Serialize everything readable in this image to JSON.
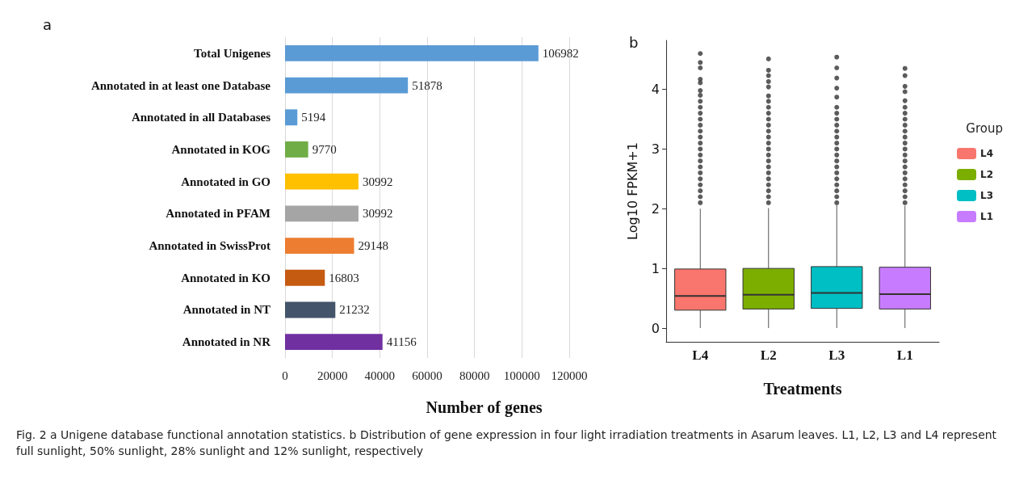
{
  "chart_data": [
    {
      "type": "bar",
      "title": "a",
      "orientation": "horizontal",
      "categories": [
        "Total Unigenes",
        "Annotated in at least one Database",
        "Annotated in all Databases",
        "Annotated in KOG",
        "Annotated in GO",
        "Annotated in PFAM",
        "Annotated in SwissProt",
        "Annotated in KO",
        "Annotated in NT",
        "Annotated in NR"
      ],
      "values": [
        106982,
        51878,
        5194,
        9770,
        30992,
        30992,
        29148,
        16803,
        21232,
        41156
      ],
      "colors": [
        "#5b9bd5",
        "#5b9bd5",
        "#5b9bd5",
        "#70ad47",
        "#ffc000",
        "#a5a5a5",
        "#ed7d31",
        "#c55a11",
        "#44546a",
        "#7030a0"
      ],
      "xlim": [
        0,
        120000
      ],
      "xticks": [
        0,
        20000,
        40000,
        60000,
        80000,
        100000,
        120000
      ],
      "grid": "x",
      "data_labels": true,
      "legend": false,
      "xlabel": "Number of genes",
      "annotations": [
        "Fig. 2 a Unigene database functional annotation statistics. b Distribution of gene expression in four light irradiation treatments in Asarum leaves. L1, L2, L3 and L4 represent full sunlight, 50% sunlight, 28% sunlight and 12% sunlight, respectively"
      ]
    },
    {
      "type": "box",
      "title": "b",
      "categories": [
        "L4",
        "L2",
        "L3",
        "L1"
      ],
      "xlabel": "Treatments",
      "ylabel": "Log10 FPKM+1",
      "ylim": [
        -0.23,
        4.82
      ],
      "yticks": [
        0,
        1,
        2,
        3,
        4
      ],
      "grid": false,
      "legend": "right",
      "legend_title": "Group",
      "marker": "circle",
      "series": [
        {
          "name": "L4",
          "color": "#f8766d",
          "boxes": [
            {
              "low": 0,
              "q1": 0.3,
              "median": 0.54,
              "q3": 0.99,
              "high": 2.0,
              "outliers": [
                2.1,
                2.2,
                2.3,
                2.4,
                2.5,
                2.6,
                2.7,
                2.8,
                2.9,
                3.0,
                3.1,
                3.2,
                3.3,
                3.4,
                3.5,
                3.6,
                3.7,
                3.8,
                3.9,
                3.98,
                4.11,
                4.17,
                4.36,
                4.45,
                4.6
              ]
            },
            null,
            null,
            null
          ]
        },
        {
          "name": "L2",
          "color": "#7cae00",
          "boxes": [
            null,
            {
              "low": 0,
              "q1": 0.32,
              "median": 0.56,
              "q3": 1.0,
              "high": 2.01,
              "outliers": [
                2.1,
                2.2,
                2.3,
                2.4,
                2.5,
                2.6,
                2.7,
                2.8,
                2.9,
                3.0,
                3.1,
                3.2,
                3.3,
                3.4,
                3.5,
                3.6,
                3.7,
                3.8,
                3.89,
                4.04,
                4.13,
                4.23,
                4.32,
                4.51
              ]
            },
            null,
            null
          ]
        },
        {
          "name": "L3",
          "color": "#00bfc4",
          "boxes": [
            null,
            null,
            {
              "low": 0,
              "q1": 0.33,
              "median": 0.59,
              "q3": 1.03,
              "high": 2.06,
              "outliers": [
                2.1,
                2.2,
                2.3,
                2.4,
                2.5,
                2.6,
                2.7,
                2.8,
                2.9,
                3.0,
                3.1,
                3.2,
                3.3,
                3.4,
                3.5,
                3.6,
                3.7,
                3.87,
                4.02,
                4.19,
                4.36,
                4.54
              ]
            },
            null
          ]
        },
        {
          "name": "L1",
          "color": "#c77cff",
          "boxes": [
            null,
            null,
            null,
            {
              "low": 0,
              "q1": 0.32,
              "median": 0.57,
              "q3": 1.02,
              "high": 2.05,
              "outliers": [
                2.1,
                2.2,
                2.3,
                2.4,
                2.5,
                2.6,
                2.7,
                2.8,
                2.9,
                3.0,
                3.1,
                3.2,
                3.3,
                3.4,
                3.5,
                3.6,
                3.7,
                3.81,
                3.96,
                4.05,
                4.23,
                4.35
              ]
            }
          ]
        }
      ]
    }
  ]
}
